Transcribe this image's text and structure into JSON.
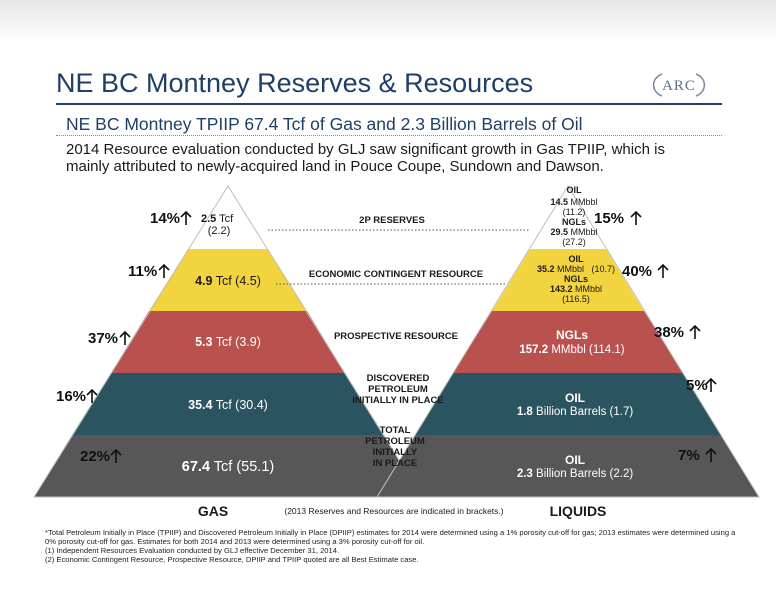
{
  "header": {
    "title": "NE BC Montney Reserves & Resources",
    "subtitle": "NE BC Montney TPIIP 67.4 Tcf of Gas and 2.3 Billion Barrels of Oil",
    "logo_text": "ARC",
    "intro": "2014 Resource evaluation conducted by GLJ saw significant growth in Gas TPIIP, which is mainly attributed to newly-acquired land in Pouce Coupe, Sundown and Dawson."
  },
  "colors": {
    "tier1": "#ffffff",
    "tier2": "#f2d340",
    "tier3": "#b9514f",
    "tier4": "#2a5560",
    "tier5": "#575757",
    "title": "#1e3f68"
  },
  "categories": [
    "2P RESERVES",
    "ECONOMIC CONTINGENT RESOURCE",
    "PROSPECTIVE RESOURCE",
    [
      "DISCOVERED",
      "PETROLEUM",
      "INITIALLY IN PLACE"
    ],
    [
      "TOTAL",
      "PETROLEUM",
      "INITIALLY",
      "IN PLACE"
    ]
  ],
  "gas": {
    "label": "GAS",
    "tiers": [
      {
        "change": "14%",
        "value": "2.5",
        "unit": " Tcf",
        "prior": "(2.2)"
      },
      {
        "change": "11%",
        "value": "4.9",
        "unit": " Tcf (4.5)"
      },
      {
        "change": "37%",
        "value": "5.3",
        "unit": " Tcf (3.9)"
      },
      {
        "change": "16%",
        "value": "35.4",
        "unit": " Tcf (30.4)"
      },
      {
        "change": "22%",
        "value": "67.4",
        "unit": " Tcf (55.1)"
      }
    ]
  },
  "liquids": {
    "label": "LIQUIDS",
    "tier1": {
      "change": "15%",
      "l1": "OIL",
      "l2v": "14.5",
      "l2u": " MMbbl",
      "l3": "(11.2)",
      "l4": "NGLs",
      "l5v": "29.5",
      "l5u": " MMbbl",
      "l6": "(27.2)"
    },
    "tier2": {
      "change": "40%",
      "l1": "OIL",
      "l2v": "35.2",
      "l2u": " MMbbl   (10.7)",
      "l3": "NGLs",
      "l4v": "143.2",
      "l4u": " MMbbl",
      "l5": "(116.5)"
    },
    "tier3": {
      "change": "38%",
      "l1": "NGLs",
      "l2v": "157.2",
      "l2u": " MMbbl (114.1)"
    },
    "tier4": {
      "change": "5%",
      "l1": "OIL",
      "l2v": "1.8",
      "l2u": " Billion Barrels (1.7)"
    },
    "tier5": {
      "change": "7%",
      "l1": "OIL",
      "l2v": "2.3",
      "l2u": " Billion Barrels (2.2)"
    }
  },
  "bracket_note": "(2013 Reserves and Resources are indicated in brackets.)",
  "footnotes": [
    "*Total Petroleum Initially in Place (TPIIP) and Discovered Petroleum Initially in Place (DPIIP) estimates for 2014 were determined using a 1% porosity cut-off for gas; 2013 estimates were determined using a 0% porosity cut-off for gas. Estimates for both 2014 and 2013 were determined using a 3% porosity cut-off for oil.",
    "(1)    Independent Resources Evaluation conducted by GLJ effective December 31, 2014.",
    "(2)    Economic Contingent Resource, Prospective Resource, DPIIP and TPIIP quoted are all Best Estimate case."
  ]
}
